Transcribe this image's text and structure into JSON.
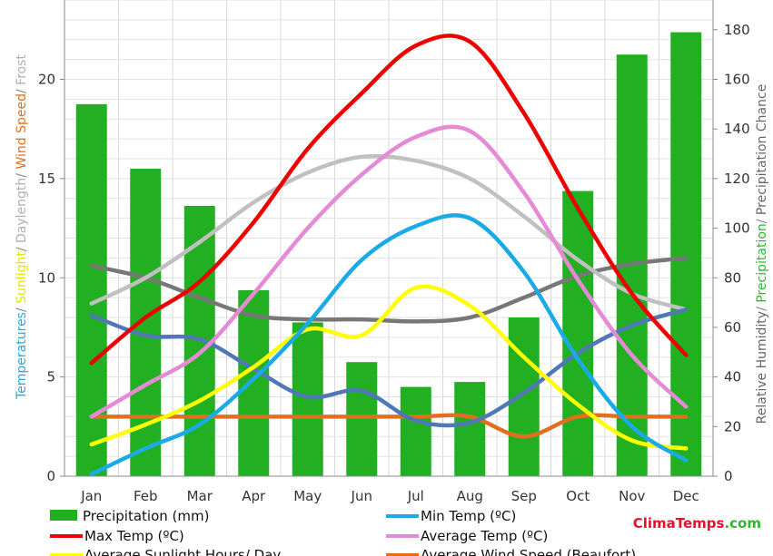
{
  "chart_data": {
    "type": "bar",
    "categories": [
      "Jan",
      "Feb",
      "Mar",
      "Apr",
      "May",
      "Jun",
      "Jul",
      "Aug",
      "Sep",
      "Oct",
      "Nov",
      "Dec"
    ],
    "left_axis": {
      "label_parts": [
        {
          "text": "Temperatures",
          "color": "#29a8e0"
        },
        {
          "text": "/ ",
          "color": "#888888"
        },
        {
          "text": "Sunlight",
          "color": "#e6e600"
        },
        {
          "text": "/ ",
          "color": "#888888"
        },
        {
          "text": "Daylength",
          "color": "#b0b0b0"
        },
        {
          "text": "/ ",
          "color": "#888888"
        },
        {
          "text": "Wind Speed",
          "color": "#e07020"
        },
        {
          "text": "/ ",
          "color": "#888888"
        },
        {
          "text": "Frost",
          "color": "#b0b0b0"
        }
      ],
      "ylim": [
        0,
        24
      ],
      "ticks": [
        0,
        5,
        10,
        15,
        20
      ]
    },
    "right_axis": {
      "label_parts": [
        {
          "text": "Relative Humidity",
          "color": "#666666"
        },
        {
          "text": "/ ",
          "color": "#888888"
        },
        {
          "text": "Precipitation",
          "color": "#2db82d"
        },
        {
          "text": "/ ",
          "color": "#888888"
        },
        {
          "text": "Precipitation Chance",
          "color": "#666666"
        }
      ],
      "ylim": [
        0,
        192
      ],
      "ticks": [
        0,
        20,
        40,
        60,
        80,
        100,
        120,
        140,
        160,
        180
      ]
    },
    "bars": {
      "name": "Precipitation (mm)",
      "color": "#22b022",
      "axis": "right",
      "values": [
        150,
        124,
        109,
        75,
        62,
        46,
        36,
        38,
        64,
        115,
        170,
        179
      ]
    },
    "series": [
      {
        "name": "Average Wind Speed (Beaufort)",
        "color": "#e07020",
        "axis": "left",
        "values": [
          3.0,
          3.0,
          3.0,
          3.0,
          3.0,
          3.0,
          3.0,
          3.0,
          2.0,
          3.0,
          3.0,
          3.0
        ]
      },
      {
        "name": "",
        "color": "#777777",
        "axis": "left",
        "values": [
          10.6,
          10.0,
          9.0,
          8.1,
          7.9,
          7.9,
          7.8,
          8.0,
          9.0,
          10.1,
          10.7,
          11.0
        ]
      },
      {
        "name": "",
        "color": "#c0c0c0",
        "axis": "left",
        "values": [
          8.7,
          10.0,
          11.8,
          13.8,
          15.3,
          16.1,
          15.9,
          15.0,
          13.1,
          10.9,
          9.2,
          8.4
        ]
      },
      {
        "name": "",
        "color": "#5077b8",
        "axis": "left",
        "values": [
          8.1,
          7.1,
          6.9,
          5.4,
          4.0,
          4.3,
          2.8,
          2.7,
          4.2,
          6.2,
          7.6,
          8.4
        ]
      },
      {
        "name": "Average Sunlight Hours/ Day",
        "color": "#ffff00",
        "axis": "left",
        "values": [
          1.6,
          2.6,
          3.8,
          5.5,
          7.4,
          7.1,
          9.5,
          8.6,
          6.0,
          3.6,
          1.8,
          1.4
        ]
      },
      {
        "name": "Min Temp (ºC)",
        "color": "#1aabe6",
        "axis": "left",
        "values": [
          0.1,
          1.4,
          2.6,
          4.9,
          7.7,
          10.9,
          12.6,
          13.0,
          10.3,
          5.9,
          2.5,
          0.8
        ]
      },
      {
        "name": "Average Temp (ºC)",
        "color": "#e68ad6",
        "axis": "left",
        "values": [
          3.0,
          4.6,
          6.2,
          9.2,
          12.5,
          15.2,
          17.1,
          17.4,
          14.3,
          9.9,
          6.1,
          3.5
        ]
      },
      {
        "name": "Max Temp (ºC)",
        "color": "#ee0000",
        "axis": "left",
        "values": [
          5.7,
          8.0,
          9.8,
          12.8,
          16.5,
          19.3,
          21.7,
          21.9,
          18.3,
          13.5,
          9.2,
          6.1
        ]
      }
    ],
    "legend": [
      {
        "label": "Precipitation (mm)",
        "color": "#22b022",
        "kind": "bar"
      },
      {
        "label": "Min Temp (ºC)",
        "color": "#1aabe6",
        "kind": "line"
      },
      {
        "label": "Max Temp (ºC)",
        "color": "#ee0000",
        "kind": "line"
      },
      {
        "label": "Average Temp (ºC)",
        "color": "#e68ad6",
        "kind": "line"
      },
      {
        "label": "Average Sunlight Hours/ Day",
        "color": "#ffff00",
        "kind": "line"
      },
      {
        "label": "Average Wind Speed (Beaufort)",
        "color": "#e07020",
        "kind": "line"
      }
    ],
    "grid": true,
    "legend_placement": "bottom"
  },
  "brand": {
    "parts": [
      {
        "text": "Clima",
        "color": "#e8112d"
      },
      {
        "text": "Temps",
        "color": "#e8112d"
      },
      {
        "text": ".com",
        "color": "#2db82d"
      }
    ]
  }
}
